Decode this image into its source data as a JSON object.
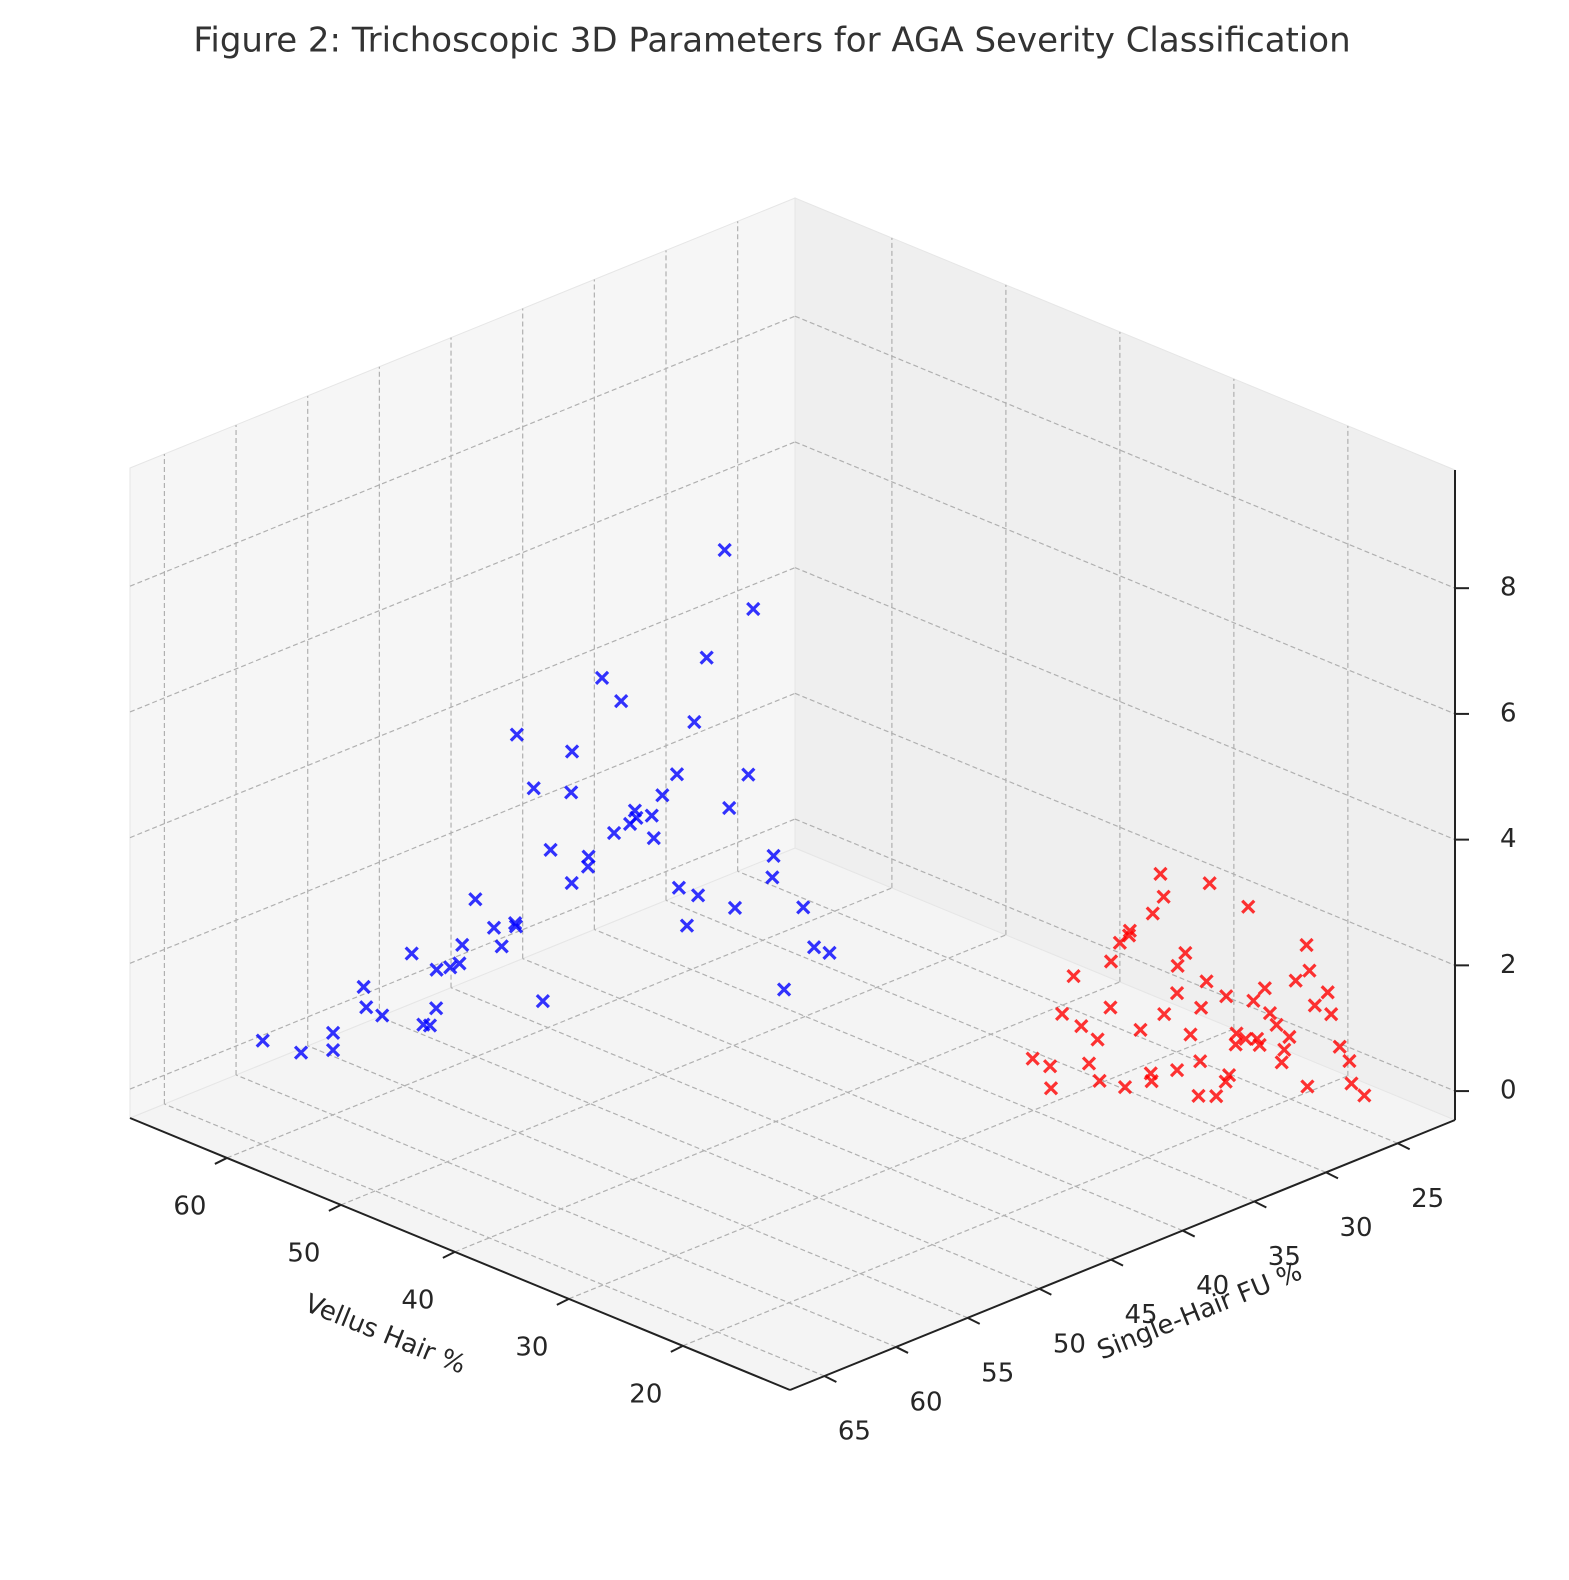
{
  "chart_data": {
    "type": "scatter3d",
    "title": "Figure 2: Trichoscopic 3D Parameters for AGA Severity Classification",
    "xlabel": "Vellus Hair %",
    "ylabel": "Single-Hair FU %",
    "xlim": [
      10.6,
      68.5
    ],
    "ylim": [
      21,
      67.4
    ],
    "zlim": [
      -0.46,
      9.88
    ],
    "xticks": [
      20,
      30,
      40,
      50,
      60
    ],
    "yticks": [
      25,
      30,
      35,
      40,
      45,
      50,
      55,
      60,
      65
    ],
    "zticks": [
      0,
      2,
      4,
      6,
      8
    ],
    "grid": true,
    "series": [
      {
        "color": "#0000ff",
        "x": [
          48.2,
          52.1,
          41.5,
          55.3,
          46.8,
          38.9,
          50.4,
          44.7,
          57.6,
          42.3,
          49.9,
          53.8,
          39.6,
          47.1,
          45.5,
          51.7,
          36.4,
          43.8,
          58.9,
          40.7,
          46.2,
          54.6,
          48.8,
          37.9,
          50.9,
          44.1,
          42.9,
          56.2,
          47.7,
          39.2,
          52.8,
          45.9,
          41.1,
          49.3,
          35.8,
          53.2,
          43.4,
          60.5,
          46.5,
          38.3,
          51.3,
          44.9,
          48.5,
          40.2,
          55.8,
          42.6,
          47.4,
          50.1,
          37.1,
          45.2,
          53.5,
          41.8,
          49.6,
          44.3,
          57.1
        ],
        "y": [
          54.2,
          58.1,
          49.5,
          60.3,
          52.7,
          47.8,
          56.4,
          51.1,
          61.9,
          48.6,
          55.2,
          57.7,
          46.9,
          53.6,
          50.8,
          59.4,
          45.2,
          49.9,
          63.1,
          47.3,
          52.2,
          58.8,
          54.9,
          46.1,
          57.3,
          50.4,
          48.9,
          60.7,
          53.1,
          45.8,
          56.9,
          51.6,
          47.7,
          55.8,
          44.6,
          59.1,
          49.2,
          64.5,
          52.9,
          46.6,
          57.9,
          51.9,
          54.5,
          48.1,
          61.2,
          49.7,
          53.4,
          56.1,
          45.4,
          50.6,
          58.4,
          48.4,
          55.5,
          50.1,
          62.3
        ],
        "z": [
          4.1,
          2.3,
          6.2,
          1.5,
          3.8,
          5.4,
          2.9,
          4.7,
          1.2,
          3.3,
          5.9,
          2.1,
          7.9,
          3.6,
          4.4,
          1.8,
          2.6,
          4.9,
          0.9,
          3.1,
          6.8,
          2.4,
          5.1,
          1.9,
          3.4,
          4.6,
          2.8,
          1.6,
          5.6,
          3.9,
          2.2,
          4.3,
          8.8,
          3.0,
          2.5,
          1.4,
          5.2,
          1.1,
          4.0,
          3.7,
          2.7,
          6.5,
          1.7,
          4.8,
          2.0,
          3.5,
          5.0,
          2.6,
          3.2,
          4.5,
          1.3,
          7.1,
          2.9,
          4.2,
          1.0
        ]
      },
      {
        "color": "#ff0000",
        "x": [
          18.2,
          21.5,
          15.7,
          24.1,
          19.8,
          13.9,
          22.6,
          17.3,
          25.8,
          20.4,
          16.5,
          23.3,
          14.8,
          19.1,
          21.9,
          17.9,
          26.4,
          15.2,
          20.9,
          18.6,
          22.1,
          13.4,
          24.7,
          16.9,
          19.5,
          21.2,
          17.6,
          23.8,
          15.9,
          20.1,
          18.9,
          25.2,
          14.3,
          22.9,
          16.2,
          19.3,
          21.7,
          17.1,
          24.4,
          15.5,
          20.6,
          18.4,
          23.1,
          13.7,
          22.4,
          16.7,
          19.9,
          21.4,
          17.8,
          25.5,
          14.6,
          20.3,
          18.1,
          23.6,
          16.4,
          19.7,
          22.7,
          15.1,
          21.1,
          17.4
        ],
        "y": [
          30.2,
          33.5,
          27.1,
          35.8,
          31.4,
          25.6,
          34.2,
          29.3,
          37.1,
          32.6,
          28.4,
          34.9,
          26.3,
          30.9,
          33.1,
          29.8,
          37.9,
          27.7,
          32.2,
          30.6,
          33.8,
          25.1,
          36.4,
          28.9,
          31.7,
          32.9,
          29.5,
          35.3,
          27.9,
          31.9,
          30.4,
          36.8,
          26.1,
          34.6,
          28.1,
          31.2,
          33.4,
          29.1,
          36.1,
          27.4,
          32.4,
          30.1,
          35.1,
          25.9,
          34.3,
          28.6,
          31.5,
          32.7,
          29.7,
          37.4,
          26.7,
          32.1,
          30.8,
          35.6,
          28.3,
          31.1,
          34.4,
          27.2,
          33.2,
          29.4
        ],
        "z": [
          1.2,
          0.5,
          2.1,
          0.8,
          1.6,
          0.3,
          2.8,
          1.0,
          0.4,
          1.9,
          0.7,
          2.4,
          1.4,
          0.2,
          3.1,
          1.1,
          0.9,
          2.6,
          0.6,
          1.8,
          1.3,
          0.1,
          2.2,
          1.5,
          0.8,
          3.4,
          1.7,
          0.5,
          2.0,
          1.2,
          0.4,
          1.6,
          0.9,
          2.7,
          1.1,
          3.6,
          0.6,
          1.9,
          1.4,
          0.3,
          2.3,
          1.0,
          1.7,
          0.7,
          2.9,
          1.3,
          0.2,
          1.5,
          3.2,
          0.8,
          1.8,
          2.5,
          0.6,
          1.2,
          0.9,
          2.0,
          0.4,
          1.6,
          3.8,
          1.1
        ]
      }
    ]
  }
}
